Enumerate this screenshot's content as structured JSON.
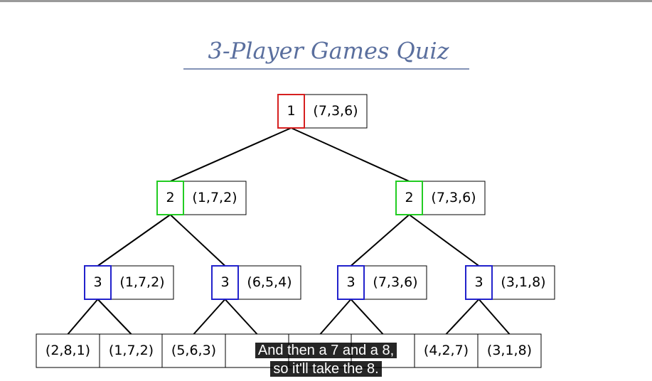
{
  "title": "3-Player Games Quiz",
  "tree": {
    "nodes": [
      {
        "player": 1,
        "value": "(7,3,6)"
      },
      {
        "player": 2,
        "value": "(1,7,2)"
      },
      {
        "player": 2,
        "value": "(7,3,6)"
      },
      {
        "player": 3,
        "value": "(1,7,2)"
      },
      {
        "player": 3,
        "value": "(6,5,4)"
      },
      {
        "player": 3,
        "value": "(7,3,6)"
      },
      {
        "player": 3,
        "value": "(3,1,8)"
      }
    ],
    "leaves": [
      "(2,8,1)",
      "(1,7,2)",
      "(5,6,3)",
      null,
      null,
      null,
      "(4,2,7)",
      "(3,1,8)"
    ]
  },
  "caption": {
    "lines": [
      "And then a 7 and a 8,",
      "so it'll take the 8."
    ]
  }
}
